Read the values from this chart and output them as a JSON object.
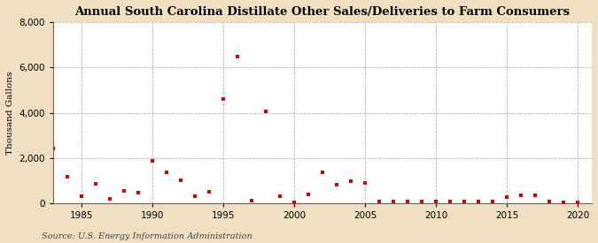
{
  "title": "Annual South Carolina Distillate Other Sales/Deliveries to Farm Consumers",
  "ylabel": "Thousand Gallons",
  "source": "Source: U.S. Energy Information Administration",
  "background_color": "#f0dfc0",
  "plot_background_color": "#ffffff",
  "grid_color": "#aaaaaa",
  "marker_color": "#cc0000",
  "xlim": [
    1983,
    2021
  ],
  "ylim": [
    0,
    8000
  ],
  "yticks": [
    0,
    2000,
    4000,
    6000,
    8000
  ],
  "xticks": [
    1985,
    1990,
    1995,
    2000,
    2005,
    2010,
    2015,
    2020
  ],
  "data": [
    [
      1983,
      2400
    ],
    [
      1984,
      1150
    ],
    [
      1985,
      300
    ],
    [
      1986,
      850
    ],
    [
      1987,
      200
    ],
    [
      1988,
      550
    ],
    [
      1989,
      480
    ],
    [
      1990,
      1850
    ],
    [
      1991,
      1350
    ],
    [
      1992,
      1000
    ],
    [
      1993,
      320
    ],
    [
      1994,
      500
    ],
    [
      1995,
      4600
    ],
    [
      1996,
      6500
    ],
    [
      1997,
      100
    ],
    [
      1998,
      4050
    ],
    [
      1999,
      300
    ],
    [
      2000,
      30
    ],
    [
      2001,
      390
    ],
    [
      2002,
      1350
    ],
    [
      2003,
      820
    ],
    [
      2004,
      950
    ],
    [
      2005,
      900
    ],
    [
      2006,
      50
    ],
    [
      2007,
      50
    ],
    [
      2008,
      50
    ],
    [
      2009,
      50
    ],
    [
      2010,
      50
    ],
    [
      2011,
      50
    ],
    [
      2012,
      50
    ],
    [
      2013,
      50
    ],
    [
      2014,
      50
    ],
    [
      2015,
      280
    ],
    [
      2016,
      350
    ],
    [
      2017,
      330
    ],
    [
      2018,
      50
    ],
    [
      2019,
      30
    ],
    [
      2020,
      30
    ]
  ]
}
